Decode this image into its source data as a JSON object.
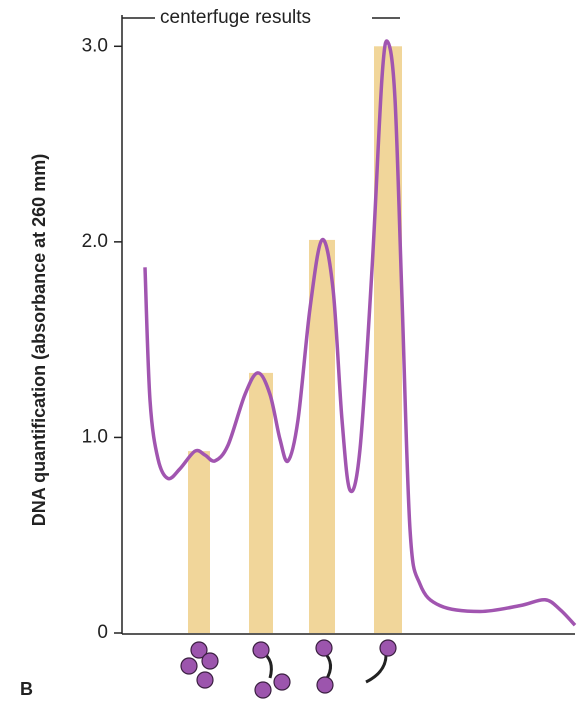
{
  "chart_data": {
    "type": "line",
    "title": "centerfuge results",
    "ylabel": "DNA quantification (absorbance at 260 mm)",
    "panel_label": "B",
    "xlim": [
      0,
      453
    ],
    "ylim": [
      0,
      3.16
    ],
    "yticks": [
      0,
      {
        "value": 1,
        "label": "1.0"
      },
      {
        "value": 2,
        "label": "2.0"
      },
      {
        "value": 3,
        "label": "3.0"
      }
    ],
    "series": [
      {
        "color": "#a155b0",
        "x": [
          23,
          28,
          36,
          46,
          58,
          73,
          83,
          93,
          106,
          123,
          136,
          148,
          158,
          166,
          176,
          188,
          200,
          211,
          220,
          228,
          238,
          250,
          260,
          266,
          273,
          280,
          288,
          298,
          318,
          358,
          398,
          423,
          438,
          453
        ],
        "values": [
          1.87,
          1.19,
          0.89,
          0.79,
          0.84,
          0.93,
          0.91,
          0.88,
          0.96,
          1.22,
          1.33,
          1.22,
          0.99,
          0.88,
          1.09,
          1.66,
          2.01,
          1.76,
          1.09,
          0.73,
          0.94,
          1.86,
          2.84,
          3.02,
          2.73,
          1.71,
          0.53,
          0.25,
          0.14,
          0.11,
          0.14,
          0.17,
          0.12,
          0.04
        ]
      }
    ],
    "bars": {
      "color": "#f1d69a",
      "x": [
        77,
        139,
        200,
        266
      ],
      "values": [
        0.93,
        1.33,
        2.01,
        3.0
      ]
    }
  }
}
